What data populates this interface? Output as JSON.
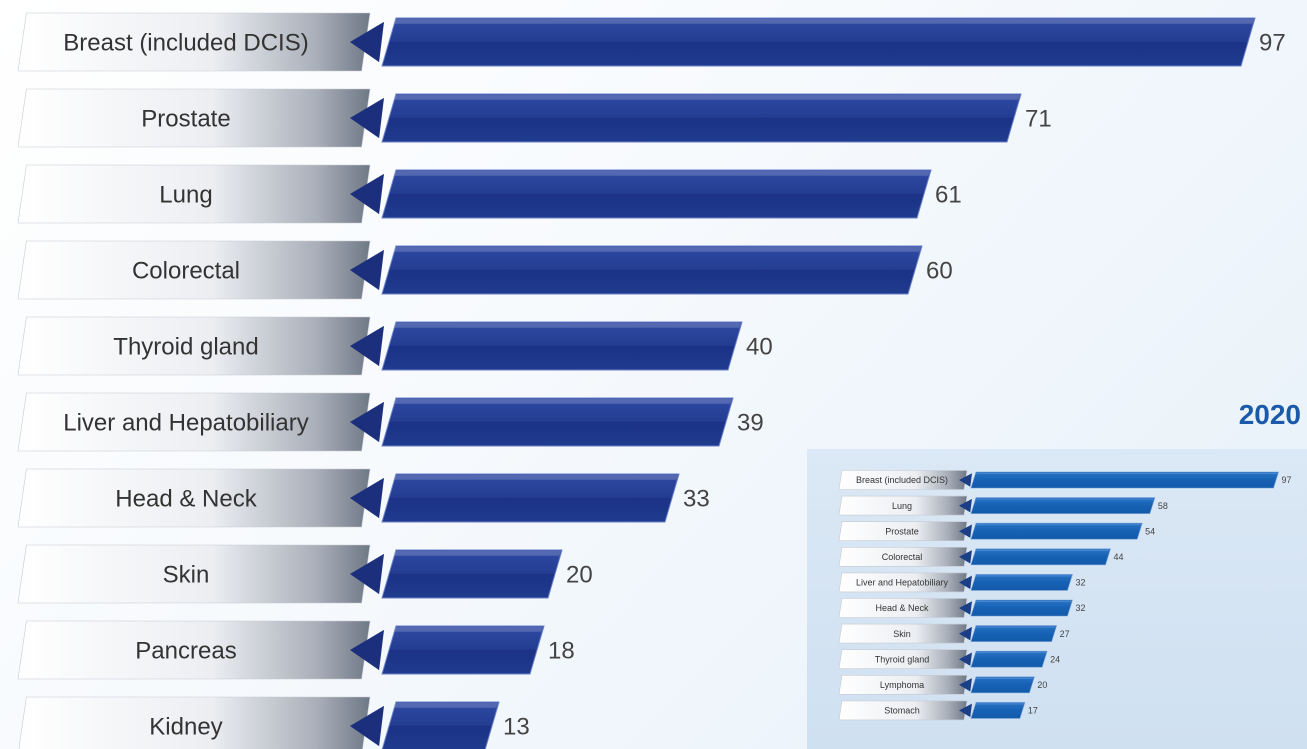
{
  "chart_data": [
    {
      "type": "bar",
      "orientation": "horizontal",
      "categories": [
        "Breast (included DCIS)",
        "Prostate",
        "Lung",
        "Colorectal",
        "Thyroid gland",
        "Liver and Hepatobiliary",
        "Head & Neck",
        "Skin",
        "Pancreas",
        "Kidney"
      ],
      "values": [
        97,
        71,
        61,
        60,
        40,
        39,
        33,
        20,
        18,
        13
      ],
      "title": "",
      "xlabel": "",
      "ylabel": "",
      "bar_color": "#1f3a8a",
      "data_labels": true,
      "grid": false,
      "legend": "none"
    },
    {
      "type": "bar",
      "orientation": "horizontal",
      "title": "2020",
      "categories": [
        "Breast (included DCIS)",
        "Lung",
        "Prostate",
        "Colorectal",
        "Liver and Hepatobiliary",
        "Head & Neck",
        "Skin",
        "Thyroid gland",
        "Lymphoma",
        "Stomach"
      ],
      "values": [
        97,
        58,
        54,
        44,
        32,
        32,
        27,
        24,
        20,
        17
      ],
      "xlabel": "",
      "ylabel": "",
      "bar_color": "#1560b5",
      "data_labels": true,
      "grid": false,
      "legend": "none"
    }
  ],
  "colors": {
    "title": "#1a5aa8",
    "main_bar": "#1f3a8a",
    "inset_bar": "#1560b5"
  }
}
